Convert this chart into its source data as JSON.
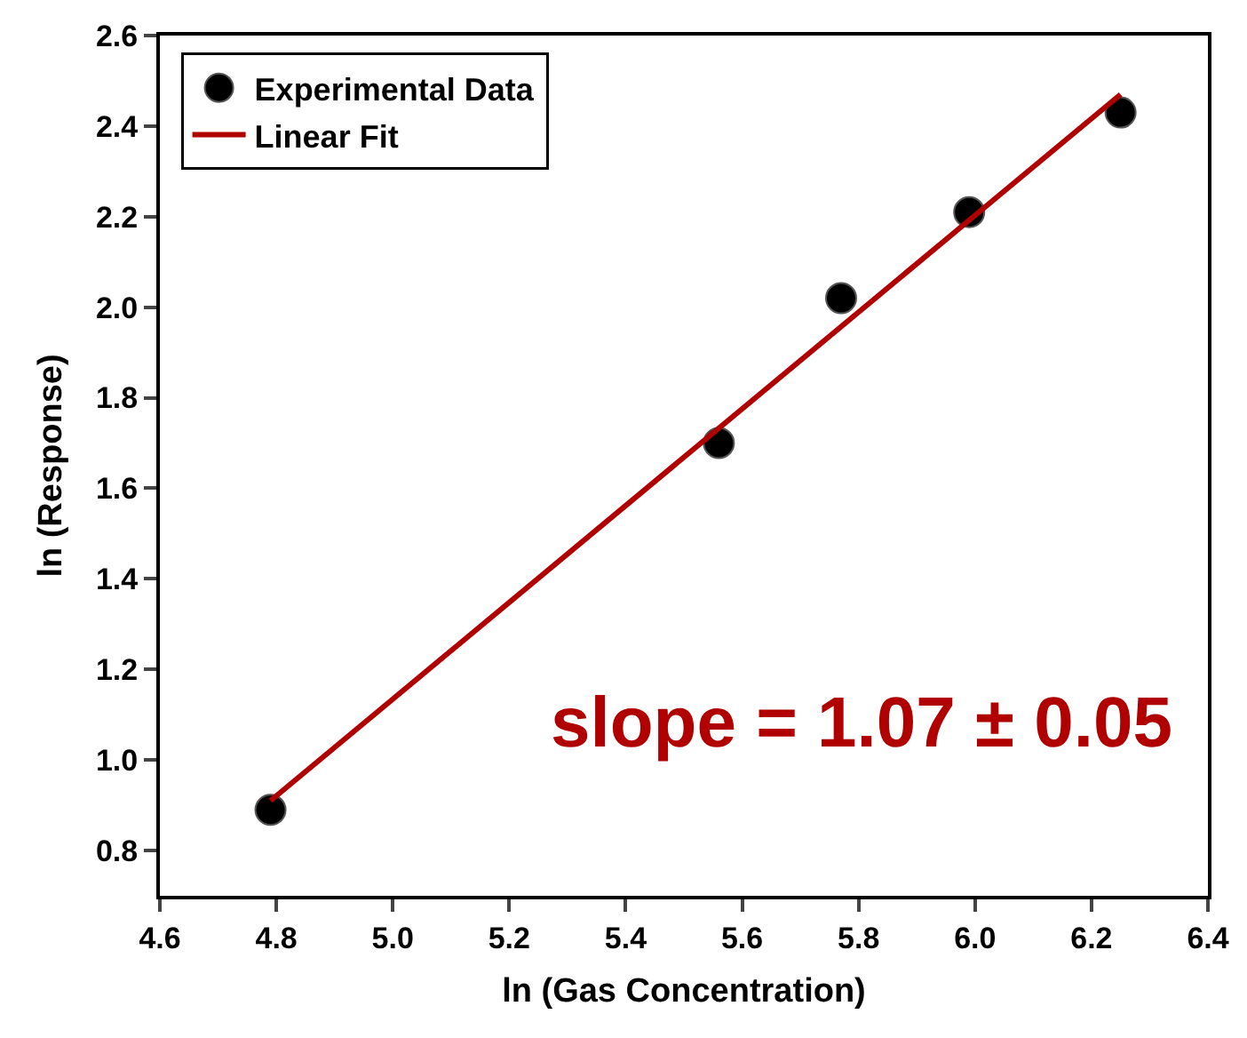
{
  "chart_data": {
    "type": "scatter",
    "xlabel": "ln (Gas Concentration)",
    "ylabel": "ln (Response)",
    "xlim": [
      4.6,
      6.4
    ],
    "ylim": [
      0.7,
      2.6
    ],
    "xticks": [
      4.6,
      4.8,
      {
        "value": 5,
        "label": "5.0"
      },
      5.2,
      5.4,
      5.6,
      5.8,
      {
        "value": 6,
        "label": "6.0"
      },
      6.2,
      6.4
    ],
    "yticks": [
      0.8,
      {
        "value": 1,
        "label": "1.0"
      },
      1.2,
      1.4,
      1.6,
      1.8,
      {
        "value": 2,
        "label": "2.0"
      },
      2.2,
      2.4,
      2.6
    ],
    "grid": false,
    "legend": "top left",
    "series": [
      {
        "name": "Experimental Data",
        "marker": "circle",
        "color": "#000000",
        "x": [
          4.79,
          5.56,
          5.77,
          5.99,
          6.25
        ],
        "values": [
          0.89,
          1.7,
          2.02,
          2.21,
          2.43
        ]
      },
      {
        "name": "Linear Fit",
        "type": "line",
        "color": "#b00000",
        "line_style": "solid",
        "x": [
          4.79,
          6.25
        ],
        "values": [
          0.91,
          2.47
        ]
      }
    ],
    "annotations": [
      "slope = 1.07 ± 0.05"
    ]
  }
}
